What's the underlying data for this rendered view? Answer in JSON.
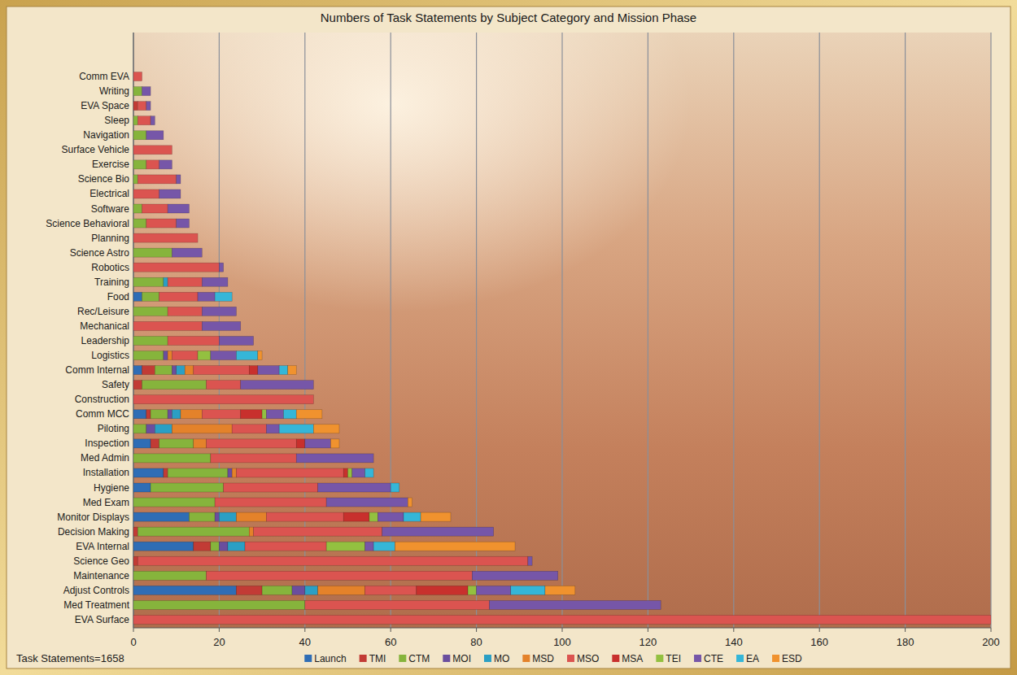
{
  "chart_data": {
    "type": "bar",
    "title": "Numbers of Task Statements by Subject Category and Mission Phase",
    "orientation": "horizontal",
    "stacked": true,
    "grid": true,
    "legend": "bottom",
    "annotations": [
      "Task Statements=1658"
    ],
    "categories": [
      "Comm EVA",
      "Writing",
      "EVA Space",
      "Sleep",
      "Navigation",
      "Surface Vehicle",
      "Exercise",
      "Science Bio",
      "Electrical",
      "Software",
      "Science Behavioral",
      "Planning",
      "Science Astro",
      "Robotics",
      "Training",
      "Food",
      "Rec/Leisure",
      "Mechanical",
      "Leadership",
      "Logistics",
      "Comm Internal",
      "Safety",
      "Construction",
      "Comm MCC",
      "Piloting",
      "Inspection",
      "Med Admin",
      "Installation",
      "Hygiene",
      "Med Exam",
      "Monitor Displays",
      "Decision Making",
      "EVA Internal",
      "Science Geo",
      "Maintenance",
      "Adjust Controls",
      "Med Treatment",
      "EVA Surface"
    ],
    "series": [
      {
        "name": "Launch",
        "color": "#2f6db5",
        "values": [
          0,
          0,
          0,
          0,
          0,
          0,
          0,
          0,
          0,
          0,
          0,
          0,
          0,
          0,
          0,
          2,
          0,
          0,
          0,
          0,
          2,
          0,
          0,
          3,
          0,
          4,
          0,
          7,
          4,
          0,
          13,
          0,
          14,
          0,
          0,
          24,
          0,
          0
        ]
      },
      {
        "name": "TMI",
        "color": "#c23b35",
        "values": [
          0,
          0,
          1,
          0,
          0,
          0,
          0,
          0,
          0,
          0,
          0,
          0,
          0,
          0,
          0,
          0,
          0,
          0,
          0,
          0,
          3,
          2,
          0,
          1,
          0,
          2,
          0,
          1,
          0,
          0,
          0,
          1,
          4,
          1,
          0,
          6,
          0,
          0
        ]
      },
      {
        "name": "CTM",
        "color": "#86b43c",
        "values": [
          0,
          2,
          0,
          1,
          3,
          0,
          3,
          1,
          0,
          2,
          3,
          0,
          9,
          0,
          7,
          4,
          8,
          0,
          8,
          7,
          4,
          15,
          0,
          4,
          3,
          8,
          18,
          14,
          17,
          19,
          6,
          26,
          2,
          0,
          17,
          7,
          40,
          0
        ]
      },
      {
        "name": "MOI",
        "color": "#6a4e9e",
        "values": [
          0,
          0,
          0,
          0,
          0,
          0,
          0,
          0,
          0,
          0,
          0,
          0,
          0,
          0,
          0,
          0,
          0,
          0,
          0,
          1,
          1,
          0,
          0,
          1,
          2,
          0,
          0,
          1,
          0,
          0,
          1,
          0,
          2,
          0,
          0,
          3,
          0,
          0
        ]
      },
      {
        "name": "MO",
        "color": "#2b9fc4",
        "values": [
          0,
          0,
          0,
          0,
          0,
          0,
          0,
          0,
          0,
          0,
          0,
          0,
          0,
          0,
          1,
          0,
          0,
          0,
          0,
          0,
          2,
          0,
          0,
          2,
          4,
          0,
          0,
          0,
          0,
          0,
          4,
          0,
          4,
          0,
          0,
          3,
          0,
          0
        ]
      },
      {
        "name": "MSD",
        "color": "#e4822a",
        "values": [
          0,
          0,
          0,
          0,
          0,
          0,
          0,
          0,
          0,
          0,
          0,
          0,
          0,
          0,
          0,
          0,
          0,
          0,
          0,
          1,
          2,
          0,
          0,
          5,
          14,
          3,
          0,
          1,
          0,
          0,
          7,
          1,
          0,
          0,
          0,
          11,
          0,
          0
        ]
      },
      {
        "name": "MSO",
        "color": "#db5450",
        "values": [
          2,
          0,
          2,
          3,
          0,
          9,
          3,
          9,
          6,
          6,
          7,
          15,
          0,
          20,
          8,
          9,
          8,
          16,
          12,
          6,
          13,
          8,
          42,
          9,
          8,
          21,
          20,
          25,
          22,
          26,
          18,
          30,
          19,
          91,
          62,
          12,
          43,
          200
        ]
      },
      {
        "name": "MSA",
        "color": "#c8302d",
        "values": [
          0,
          0,
          0,
          0,
          0,
          0,
          0,
          0,
          0,
          0,
          0,
          0,
          0,
          0,
          0,
          0,
          0,
          0,
          0,
          0,
          2,
          0,
          0,
          5,
          0,
          2,
          0,
          1,
          0,
          0,
          6,
          0,
          0,
          0,
          0,
          12,
          0,
          0
        ]
      },
      {
        "name": "TEI",
        "color": "#93c040",
        "values": [
          0,
          0,
          0,
          0,
          0,
          0,
          0,
          0,
          0,
          0,
          0,
          0,
          0,
          0,
          0,
          0,
          0,
          0,
          0,
          3,
          0,
          0,
          0,
          1,
          0,
          0,
          0,
          1,
          0,
          0,
          2,
          0,
          9,
          0,
          0,
          2,
          0,
          0
        ]
      },
      {
        "name": "CTE",
        "color": "#7656a8",
        "values": [
          0,
          2,
          1,
          1,
          4,
          0,
          3,
          1,
          5,
          5,
          3,
          0,
          7,
          1,
          6,
          4,
          8,
          9,
          8,
          6,
          5,
          17,
          0,
          4,
          3,
          6,
          18,
          3,
          17,
          19,
          6,
          26,
          2,
          1,
          20,
          8,
          40,
          0
        ]
      },
      {
        "name": "EA",
        "color": "#35b6d8",
        "values": [
          0,
          0,
          0,
          0,
          0,
          0,
          0,
          0,
          0,
          0,
          0,
          0,
          0,
          0,
          0,
          4,
          0,
          0,
          0,
          5,
          2,
          0,
          0,
          3,
          8,
          0,
          0,
          2,
          2,
          0,
          4,
          0,
          5,
          0,
          0,
          8,
          0,
          0
        ]
      },
      {
        "name": "ESD",
        "color": "#f0922e",
        "values": [
          0,
          0,
          0,
          0,
          0,
          0,
          0,
          0,
          0,
          0,
          0,
          0,
          0,
          0,
          0,
          0,
          0,
          0,
          0,
          1,
          2,
          0,
          0,
          6,
          6,
          2,
          0,
          0,
          0,
          1,
          7,
          0,
          28,
          0,
          0,
          7,
          0,
          0
        ]
      }
    ],
    "xlim": [
      0,
      200
    ],
    "xticks": [
      0,
      20,
      40,
      60,
      80,
      100,
      120,
      140,
      160,
      180,
      200
    ]
  }
}
